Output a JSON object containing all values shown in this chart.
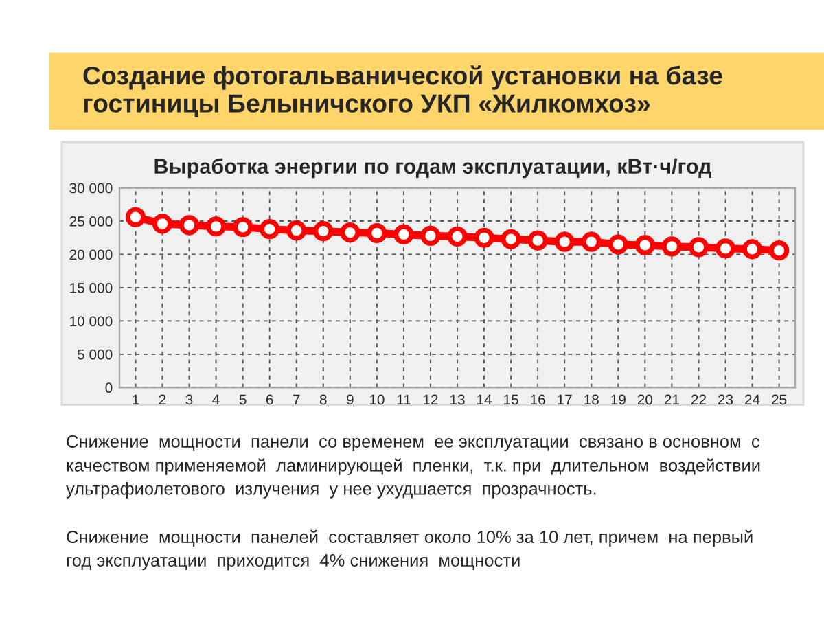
{
  "chart_data": {
    "type": "line",
    "title": "Создание фотогальванической установки на базе\nгостиницы Белыничского УКП «Жилкомхоз»",
    "subtitle": "Выработка энергии по годам эксплуатации, кВт·ч/год",
    "categories": [
      "1",
      "2",
      "3",
      "4",
      "5",
      "6",
      "7",
      "8",
      "9",
      "10",
      "11",
      "12",
      "13",
      "14",
      "15",
      "16",
      "17",
      "18",
      "19",
      "20",
      "21",
      "22",
      "23",
      "24",
      "25"
    ],
    "series": [
      {
        "color": "#ff0000",
        "values": [
          25600,
          24600,
          24400,
          24200,
          24100,
          23800,
          23600,
          23500,
          23300,
          23200,
          23000,
          22800,
          22700,
          22500,
          22300,
          22100,
          21900,
          21900,
          21500,
          21400,
          21200,
          21100,
          20900,
          20800,
          20600
        ]
      }
    ],
    "ylim": [
      0,
      30000
    ],
    "yticks": [
      {
        "value": 0,
        "label": "0"
      },
      {
        "value": 5000,
        "label": "5 000"
      },
      {
        "value": 10000,
        "label": "10 000"
      },
      {
        "value": 15000,
        "label": "15 000"
      },
      {
        "value": 20000,
        "label": "20 000"
      },
      {
        "value": 25000,
        "label": "25 000"
      },
      {
        "value": 30000,
        "label": "30 000"
      }
    ],
    "grid": true,
    "marker": "circle",
    "line_style": "solid",
    "annotations": [
      "Снижение  мощности  панели  со временем  ее эксплуатации  связано в основном  с\nкачеством применяемой  ламинирующей  пленки,  т.к. при  длительном  воздействии\nультрафиолетового  излучения  у нее ухудшается  прозрачность.",
      "Снижение  мощности  панелей  составляет около 10% за 10 лет, причем  на первый\nгод эксплуатации  приходится  4% снижения  мощности"
    ]
  }
}
